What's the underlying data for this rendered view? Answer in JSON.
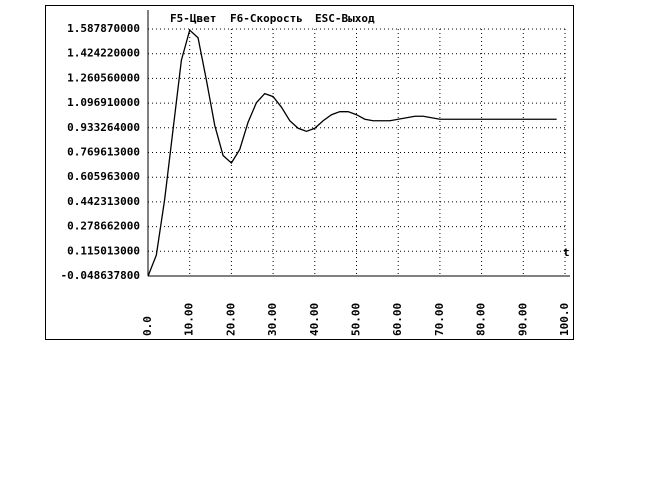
{
  "chart_data": {
    "type": "line",
    "menu": [
      "F5-Цвет",
      "F6-Скорость",
      "ESC-Выход"
    ],
    "x_label": "t",
    "x": [
      0,
      2,
      4,
      6,
      8,
      10,
      12,
      14,
      16,
      18,
      20,
      22,
      24,
      26,
      28,
      30,
      32,
      34,
      36,
      38,
      40,
      42,
      44,
      46,
      48,
      50,
      52,
      54,
      56,
      58,
      60,
      62,
      64,
      66,
      68,
      70,
      80,
      90,
      98
    ],
    "series": [
      {
        "color": "#000000",
        "values": [
          -0.05,
          0.09,
          0.46,
          0.92,
          1.38,
          1.58,
          1.53,
          1.25,
          0.95,
          0.75,
          0.7,
          0.79,
          0.97,
          1.1,
          1.16,
          1.14,
          1.07,
          0.98,
          0.93,
          0.91,
          0.93,
          0.98,
          1.02,
          1.04,
          1.04,
          1.02,
          0.99,
          0.98,
          0.98,
          0.98,
          0.99,
          1.0,
          1.01,
          1.01,
          1.0,
          0.99,
          0.99,
          0.99,
          0.99
        ]
      }
    ],
    "xlim": [
      0,
      100
    ],
    "ylim": [
      -0.0486378,
      1.58787
    ],
    "xticks": [
      {
        "value": 0,
        "label": "0.0"
      },
      {
        "value": 10,
        "label": "10.00"
      },
      {
        "value": 20,
        "label": "20.00"
      },
      {
        "value": 30,
        "label": "30.00"
      },
      {
        "value": 40,
        "label": "40.00"
      },
      {
        "value": 50,
        "label": "50.00"
      },
      {
        "value": 60,
        "label": "60.00"
      },
      {
        "value": 70,
        "label": "70.00"
      },
      {
        "value": 80,
        "label": "80.00"
      },
      {
        "value": 90,
        "label": "90.00"
      },
      {
        "value": 100,
        "label": "100.0"
      }
    ],
    "yticks": [
      {
        "value": -0.0486378,
        "label": "-0.048637800"
      },
      {
        "value": 0.115013,
        "label": "0.115013000"
      },
      {
        "value": 0.278662,
        "label": "0.278662000"
      },
      {
        "value": 0.442313,
        "label": "0.442313000"
      },
      {
        "value": 0.605963,
        "label": "0.605963000"
      },
      {
        "value": 0.769613,
        "label": "0.769613000"
      },
      {
        "value": 0.933264,
        "label": "0.933264000"
      },
      {
        "value": 1.09691,
        "label": "1.096910000"
      },
      {
        "value": 1.26056,
        "label": "1.260560000"
      },
      {
        "value": 1.42422,
        "label": "1.424220000"
      },
      {
        "value": 1.58787,
        "label": "1.587870000"
      }
    ],
    "grid": true
  }
}
